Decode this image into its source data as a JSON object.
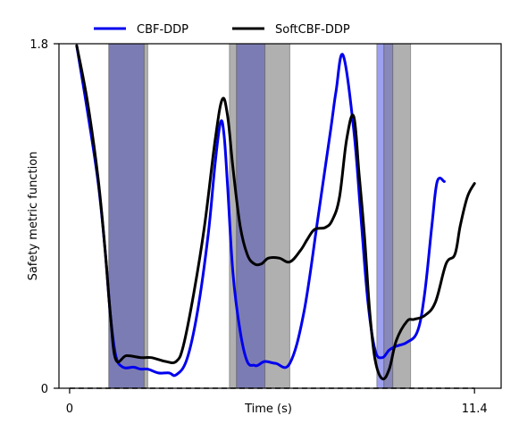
{
  "chart_data": {
    "type": "line",
    "title": "",
    "xlabel": "Time (s)",
    "ylabel": "Safety metric function",
    "xlim": [
      0,
      11.4
    ],
    "ylim": [
      0,
      1.8
    ],
    "x_ticks": [
      {
        "value": 0,
        "label": "0"
      },
      {
        "value": 11.4,
        "label": "11.4"
      }
    ],
    "y_ticks": [
      {
        "value": 0,
        "label": "0"
      },
      {
        "value": 1.8,
        "label": "1.8"
      }
    ],
    "legend_position": "top (above plot area)",
    "grid": false,
    "series": [
      {
        "name": "CBF-DDP",
        "color": "#0000ee",
        "x": [
          0.2,
          0.5,
          0.8,
          1.0,
          1.15,
          1.3,
          1.5,
          1.8,
          2.0,
          2.2,
          2.5,
          2.8,
          3.0,
          3.3,
          3.6,
          3.9,
          4.1,
          4.25,
          4.35,
          4.45,
          4.6,
          4.8,
          5.0,
          5.2,
          5.3,
          5.5,
          5.8,
          6.2,
          6.6,
          7.0,
          7.35,
          7.5,
          7.7,
          8.0,
          8.2,
          8.4,
          8.6,
          8.8,
          9.0,
          9.2,
          9.5,
          9.8,
          10.0,
          10.2,
          10.35,
          10.55
        ],
        "y": [
          1.79,
          1.45,
          1.08,
          0.72,
          0.38,
          0.17,
          0.11,
          0.11,
          0.1,
          0.1,
          0.08,
          0.08,
          0.07,
          0.15,
          0.4,
          0.8,
          1.18,
          1.39,
          1.32,
          1.05,
          0.6,
          0.3,
          0.14,
          0.12,
          0.12,
          0.14,
          0.13,
          0.13,
          0.4,
          0.9,
          1.35,
          1.55,
          1.74,
          1.35,
          0.9,
          0.45,
          0.2,
          0.16,
          0.2,
          0.22,
          0.24,
          0.3,
          0.5,
          0.85,
          1.08,
          1.08
        ]
      },
      {
        "name": "SoftCBF-DDP",
        "color": "#000000",
        "x": [
          0.2,
          0.5,
          0.8,
          1.0,
          1.15,
          1.3,
          1.6,
          2.0,
          2.3,
          2.7,
          3.0,
          3.2,
          3.5,
          3.8,
          4.1,
          4.3,
          4.45,
          4.6,
          4.8,
          5.0,
          5.2,
          5.4,
          5.6,
          5.9,
          6.2,
          6.5,
          6.7,
          6.9,
          7.2,
          7.4,
          7.6,
          7.8,
          8.0,
          8.15,
          8.3,
          8.45,
          8.6,
          8.8,
          9.0,
          9.2,
          9.5,
          9.7,
          10.0,
          10.3,
          10.6,
          10.85,
          11.0,
          11.2,
          11.4
        ],
        "y": [
          1.79,
          1.5,
          1.1,
          0.72,
          0.38,
          0.15,
          0.17,
          0.16,
          0.16,
          0.14,
          0.14,
          0.22,
          0.5,
          0.85,
          1.3,
          1.51,
          1.42,
          1.15,
          0.85,
          0.7,
          0.65,
          0.65,
          0.68,
          0.68,
          0.66,
          0.72,
          0.78,
          0.83,
          0.84,
          0.88,
          1.0,
          1.3,
          1.42,
          1.12,
          0.8,
          0.4,
          0.15,
          0.05,
          0.1,
          0.25,
          0.35,
          0.36,
          0.38,
          0.45,
          0.65,
          0.7,
          0.85,
          1.0,
          1.07
        ]
      }
    ],
    "shaded_regions": [
      {
        "x0": 1.1,
        "x1": 2.1,
        "color": "#7c7cb4"
      },
      {
        "x0": 2.1,
        "x1": 2.2,
        "color": "#b0b0b0"
      },
      {
        "x0": 4.5,
        "x1": 4.7,
        "color": "#b0b0b0"
      },
      {
        "x0": 4.7,
        "x1": 5.5,
        "color": "#7c7cb4"
      },
      {
        "x0": 5.5,
        "x1": 6.2,
        "color": "#b0b0b0"
      },
      {
        "x0": 8.65,
        "x1": 8.85,
        "color": "#9ea0f0"
      },
      {
        "x0": 8.85,
        "x1": 9.1,
        "color": "#8888bb"
      },
      {
        "x0": 9.1,
        "x1": 9.6,
        "color": "#b0b0b0"
      }
    ],
    "reference_line": {
      "y": 0,
      "style": "dashed",
      "color": "#000000"
    }
  }
}
